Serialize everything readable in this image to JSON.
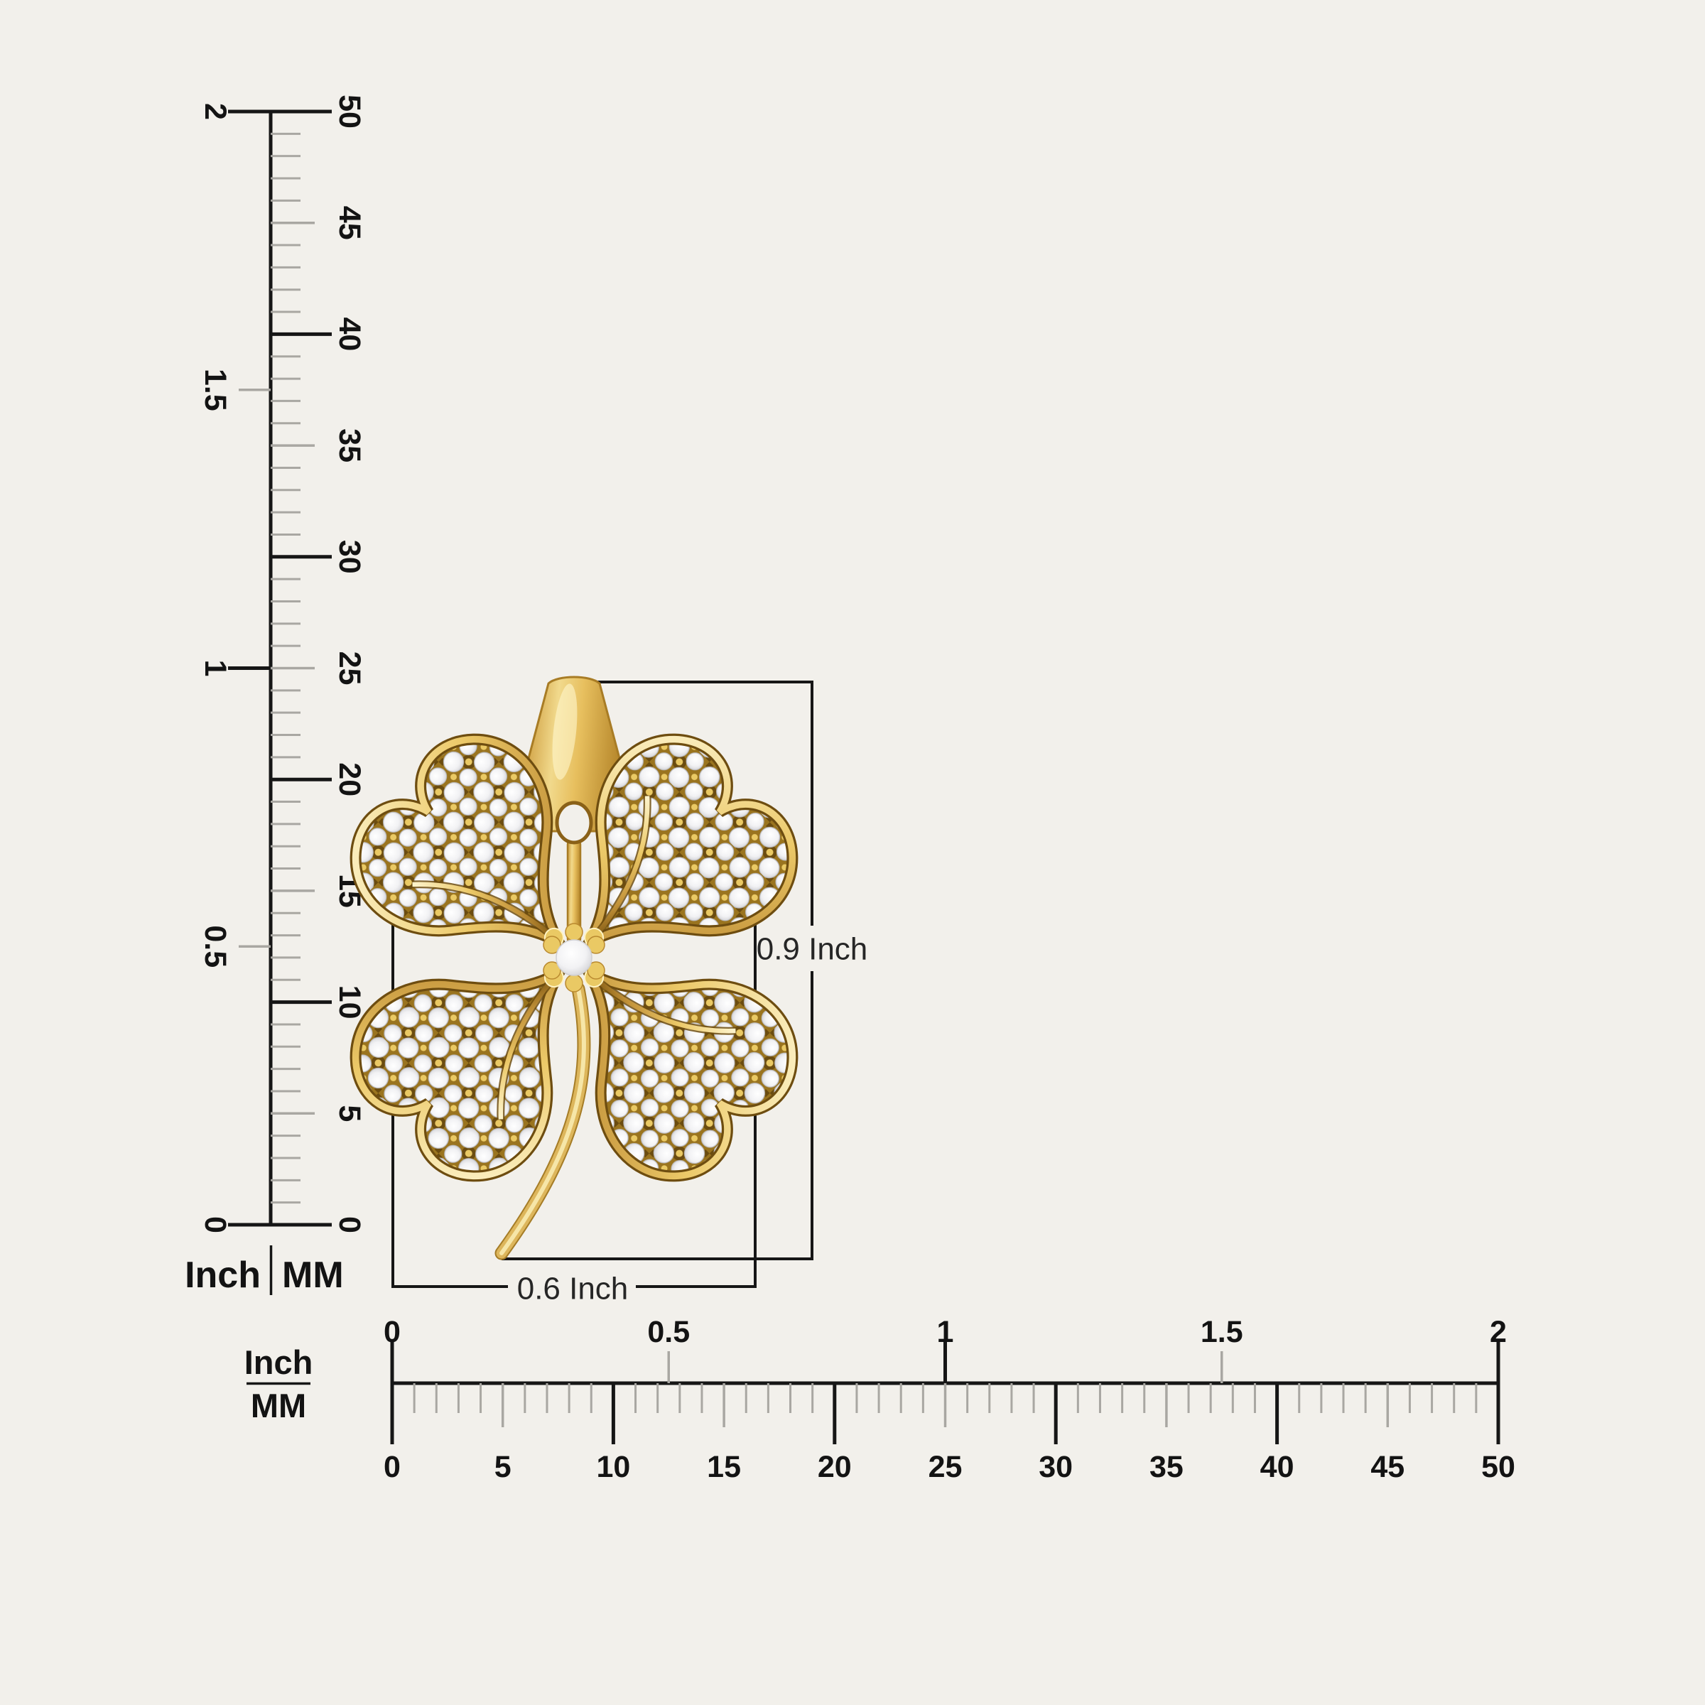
{
  "colors": {
    "background": "#f2f0eb",
    "line": "#161616",
    "tick": "#a9a7a2",
    "text": "#131313",
    "dimText": "#262626",
    "gold": "#ddb65c",
    "goldLight": "#f6e6a8",
    "goldDark": "#8a6118",
    "goldDeep": "#9a741f",
    "bead": "#eac964",
    "diamond": "#ffffff"
  },
  "vertical_ruler": {
    "unit_inch": "Inch",
    "unit_mm": "MM",
    "inch_labels": [
      "0",
      "0.5",
      "1",
      "1.5",
      "2"
    ],
    "mm_labels": [
      "0",
      "5",
      "10",
      "15",
      "20",
      "25",
      "30",
      "35",
      "40",
      "45",
      "50"
    ]
  },
  "horizontal_ruler": {
    "unit_inch": "Inch",
    "unit_mm": "MM",
    "inch_labels": [
      "0",
      "0.5",
      "1",
      "1.5",
      "2"
    ],
    "mm_labels": [
      "0",
      "5",
      "10",
      "15",
      "20",
      "25",
      "30",
      "35",
      "40",
      "45",
      "50"
    ]
  },
  "dimensions": {
    "height_label": "0.9 Inch",
    "width_label": "0.6 Inch"
  }
}
